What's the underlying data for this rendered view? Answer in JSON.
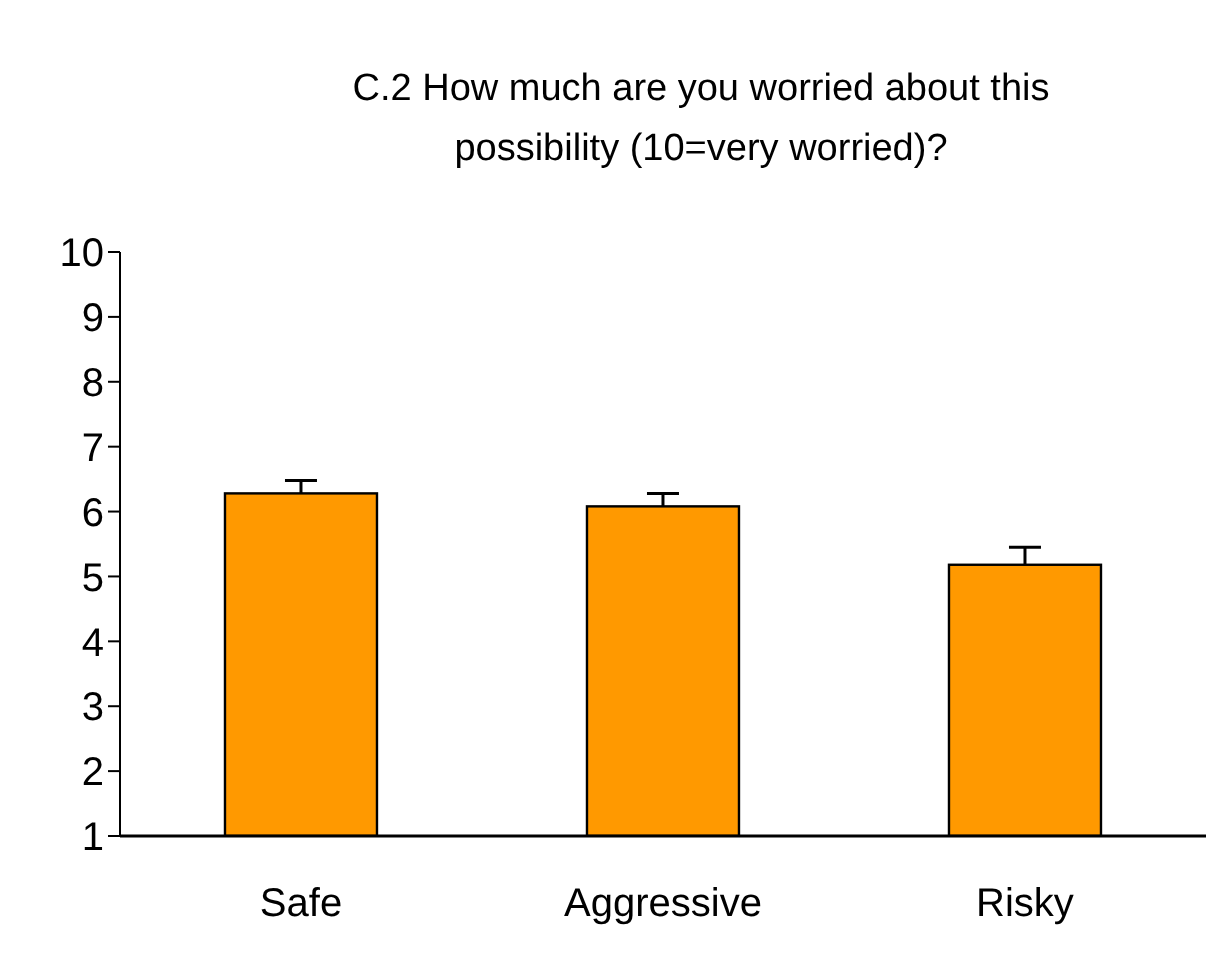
{
  "chart_data": {
    "type": "bar",
    "title": "C.2 How much are you worried about this possibility (10=very worried)?",
    "categories": [
      "Safe",
      "Aggressive",
      "Risky"
    ],
    "values": [
      6.28,
      6.08,
      5.18
    ],
    "errors": [
      0.2,
      0.2,
      0.27
    ],
    "color": "#ff9900",
    "ylim": [
      1,
      10
    ],
    "yticks": [
      1,
      2,
      3,
      4,
      5,
      6,
      7,
      8,
      9,
      10
    ],
    "grid": false
  }
}
